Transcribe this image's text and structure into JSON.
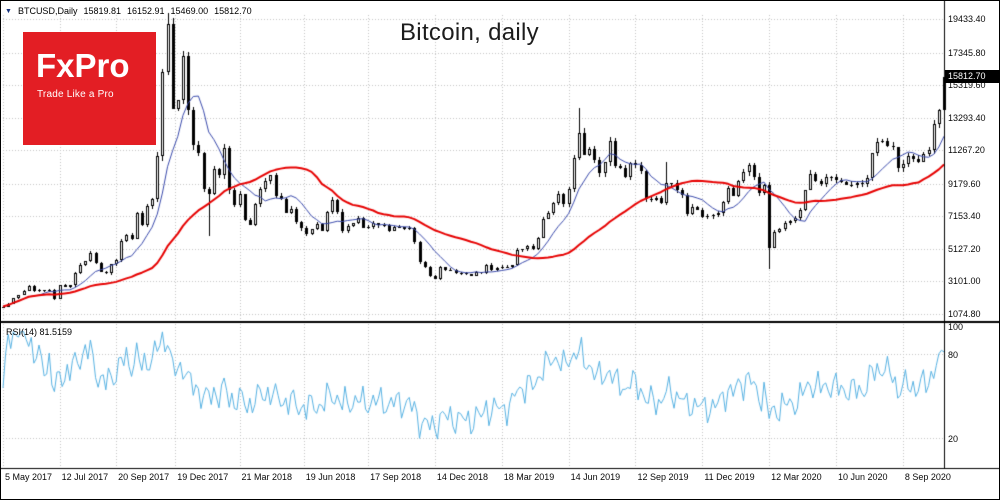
{
  "chart_title": "Bitcoin, daily",
  "indicator_label": "RSI(14) 81.5159",
  "symbol_bar": {
    "icon": "▼",
    "symbol": "BTCUSD,Daily",
    "open": "15819.81",
    "high": "16152.91",
    "low": "15469.00",
    "close": "15812.70"
  },
  "logo": {
    "text": "FxPro",
    "tagline": "Trade Like a Pro"
  },
  "price_axis": {
    "current_price": "15812.70",
    "labels": [
      {
        "value": 19433.4,
        "label": "19433.40"
      },
      {
        "value": 17345.8,
        "label": "17345.80"
      },
      {
        "value": 15319.6,
        "label": "15319.60"
      },
      {
        "value": 13293.4,
        "label": "13293.40"
      },
      {
        "value": 11267.2,
        "label": "11267.20"
      },
      {
        "value": 9179.6,
        "label": "9179.60"
      },
      {
        "value": 7153.4,
        "label": "7153.40"
      },
      {
        "value": 5127.2,
        "label": "5127.20"
      },
      {
        "value": 3101.0,
        "label": "3101.00"
      },
      {
        "value": 1074.8,
        "label": "1074.80"
      }
    ]
  },
  "colors": {
    "logo_bg": "#e31e24",
    "candle": "#000000",
    "up_fill": "#ffffff",
    "ma_fast": "#3949ab",
    "ma_slow": "#e60000",
    "rsi_line": "#56b1e2",
    "grid": "#c3c3c3",
    "separator": "#000000",
    "tag_bg": "#000000",
    "tag_text": "#ffffff"
  },
  "chart_data": {
    "type": "candlestick",
    "title": "Bitcoin, daily",
    "symbol": "BTCUSD",
    "timeframe": "Daily",
    "x_unit": "weekly samples from 5 May 2017 to 6 Nov 2020",
    "closes": [
      1540,
      1720,
      2040,
      2250,
      2520,
      2820,
      2500,
      2590,
      2480,
      2560,
      2000,
      2870,
      2750,
      2860,
      3650,
      4150,
      4350,
      4900,
      4230,
      3700,
      3600,
      4170,
      4430,
      5640,
      6000,
      5740,
      7360,
      6620,
      7790,
      8250,
      10900,
      16150,
      19100,
      13850,
      14400,
      17100,
      13800,
      11600,
      11100,
      8830,
      8560,
      10100,
      9700,
      11400,
      8800,
      7880,
      8550,
      6930,
      6630,
      7890,
      8860,
      9350,
      9700,
      8440,
      8250,
      7360,
      7640,
      6780,
      6400,
      6080,
      6390,
      6670,
      6230,
      7400,
      8180,
      7440,
      6250,
      6580,
      6710,
      7030,
      6450,
      6520,
      6710,
      6600,
      6600,
      6270,
      6460,
      6480,
      6390,
      6400,
      5550,
      4290,
      4020,
      3420,
      3230,
      3990,
      3820,
      3840,
      3650,
      3600,
      3570,
      3460,
      3660,
      3620,
      4150,
      3820,
      3950,
      4030,
      3980,
      4100,
      5050,
      5090,
      5310,
      5150,
      5830,
      7000,
      7350,
      8000,
      8550,
      7930,
      8840,
      10760,
      12360,
      11000,
      11350,
      10650,
      9850,
      10520,
      11860,
      10300,
      10130,
      9590,
      10480,
      10360,
      9990,
      8220,
      8150,
      8320,
      7970,
      9250,
      9200,
      8810,
      8500,
      7320,
      7760,
      7520,
      7090,
      7160,
      7250,
      7350,
      8030,
      8900,
      8420,
      9380,
      9890,
      10340,
      9630,
      8600,
      9120,
      5200,
      6200,
      6370,
      6740,
      6870,
      7070,
      7550,
      8790,
      9800,
      9380,
      9180,
      9580,
      9620,
      9390,
      9300,
      9130,
      9080,
      9230,
      9160,
      9540,
      11080,
      11750,
      11850,
      11530,
      11470,
      10170,
      10440,
      10930,
      10720,
      10550,
      11060,
      11300,
      12930,
      13800,
      15812.7
    ],
    "wick_overrides": {
      "32": {
        "high": 19800
      },
      "40": {
        "low": 5950
      },
      "112": {
        "high": 13880
      },
      "129": {
        "high": 10540
      },
      "149": {
        "low": 3850
      },
      "183": {
        "high": 16152.91,
        "low": 15469.0
      }
    },
    "last_bar": {
      "open": 15819.81,
      "high": 16152.91,
      "low": 15469.0,
      "close": 15812.7
    },
    "y_axis": {
      "min": 1074.8,
      "max": 19433.4
    },
    "x_ticks": [
      {
        "label": "5 May 2017",
        "week": 0
      },
      {
        "label": "12 Jul 2017",
        "week": 11
      },
      {
        "label": "20 Sep 2017",
        "week": 22
      },
      {
        "label": "19 Dec 2017",
        "week": 33.5
      },
      {
        "label": "21 Mar 2018",
        "week": 46
      },
      {
        "label": "19 Jun 2018",
        "week": 58.5
      },
      {
        "label": "17 Sep 2018",
        "week": 71
      },
      {
        "label": "14 Dec 2018",
        "week": 84
      },
      {
        "label": "18 Mar 2019",
        "week": 97
      },
      {
        "label": "14 Jun 2019",
        "week": 110
      },
      {
        "label": "12 Sep 2019",
        "week": 123
      },
      {
        "label": "11 Dec 2019",
        "week": 136
      },
      {
        "label": "12 Mar 2020",
        "week": 149
      },
      {
        "label": "10 Jun 2020",
        "week": 162
      },
      {
        "label": "8 Sep 2020",
        "week": 175
      }
    ],
    "overlays": [
      {
        "name": "ma-fast",
        "type": "sma",
        "window": 8,
        "color": "#3949ab",
        "width": 1
      },
      {
        "name": "ma-slow",
        "type": "sma",
        "window": 30,
        "color": "#e60000",
        "width": 2
      }
    ],
    "indicator_pane": {
      "name": "RSI",
      "period": 14,
      "current_value": 81.5159,
      "range": [
        0,
        100
      ],
      "level_lines": [
        80,
        20
      ],
      "axis_labels": [
        {
          "value": 100,
          "label": "100"
        },
        {
          "value": 80,
          "label": "80"
        },
        {
          "value": 20,
          "label": "20"
        }
      ]
    }
  }
}
